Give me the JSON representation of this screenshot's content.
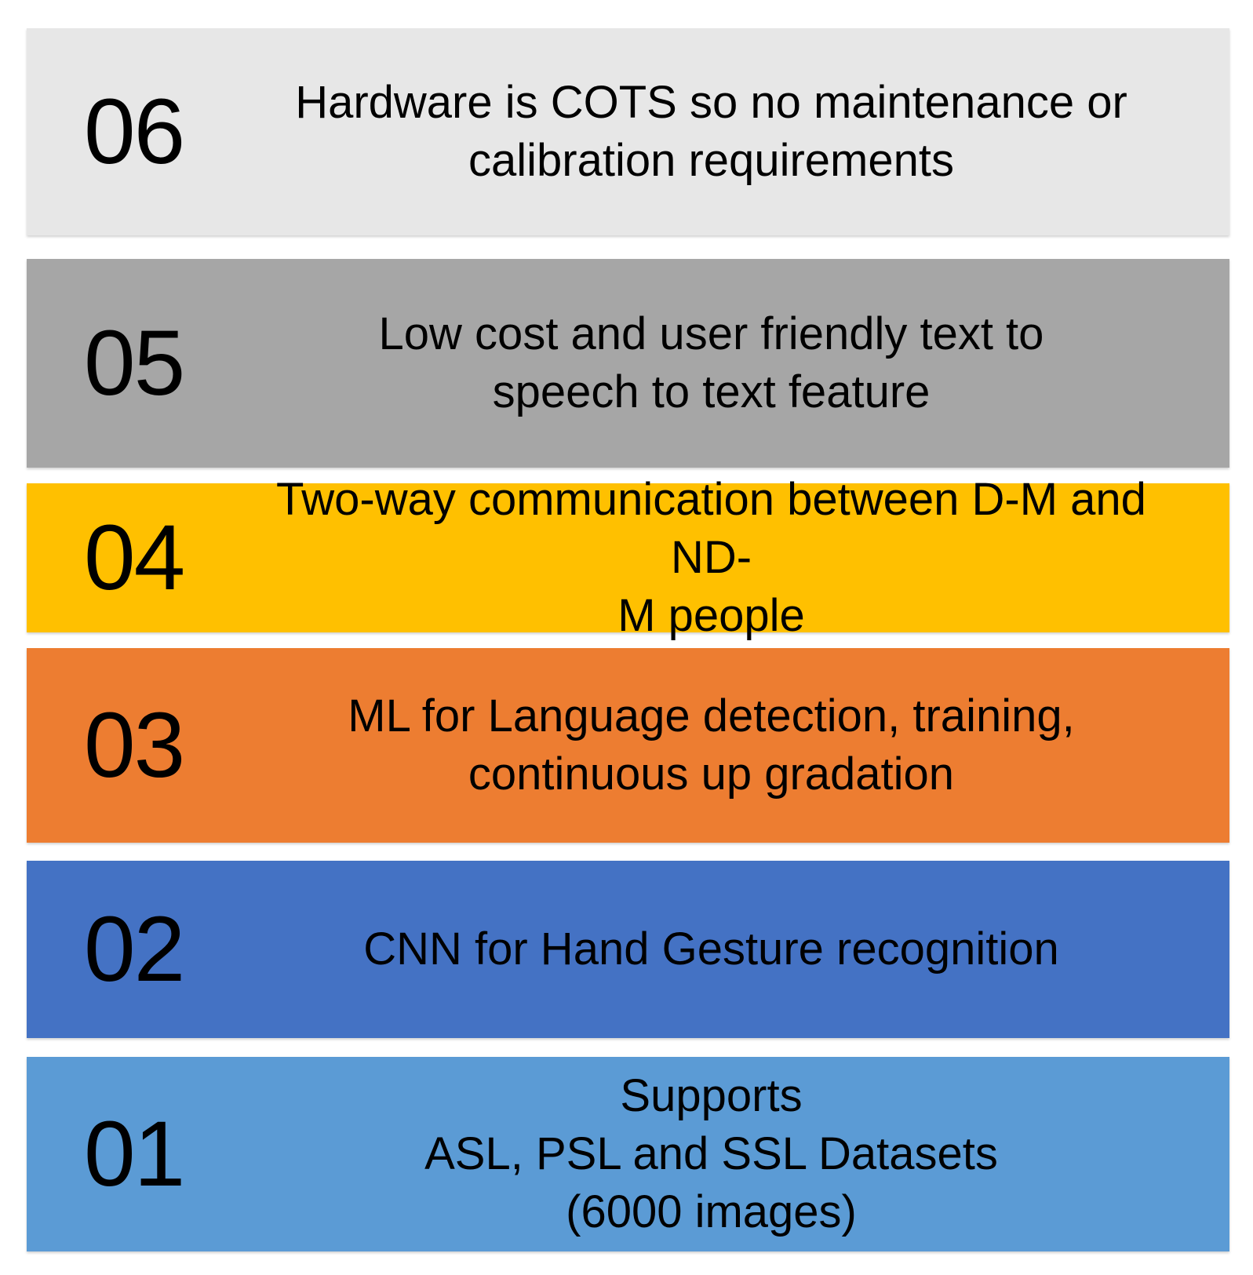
{
  "items": [
    {
      "number": "06",
      "text": "Hardware is COTS so no maintenance or calibration requirements",
      "color": "#e7e7e7"
    },
    {
      "number": "05",
      "text": "Low cost and user friendly text to speech to text feature",
      "color": "#a6a6a6"
    },
    {
      "number": "04",
      "text": "Two-way communication between D-M and ND-M people",
      "color": "#ffc000"
    },
    {
      "number": "03",
      "text": "ML for Language detection, training, continuous up gradation",
      "color": "#ed7d31"
    },
    {
      "number": "02",
      "text": "CNN for Hand Gesture recognition",
      "color": "#4472c4"
    },
    {
      "number": "01",
      "text": "Supports ASL, PSL and SSL Datasets (6000 images)",
      "color": "#5b9bd5"
    }
  ]
}
